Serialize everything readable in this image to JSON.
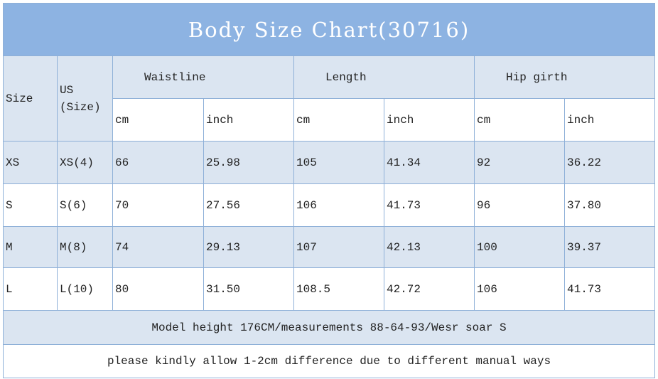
{
  "title": "Body Size Chart(30716)",
  "header": {
    "size": "Size",
    "us": [
      "US",
      "(Size)"
    ],
    "groups": [
      {
        "name": "Waistline",
        "units": [
          "cm",
          "inch"
        ]
      },
      {
        "name": "Length",
        "units": [
          "cm",
          "inch"
        ]
      },
      {
        "name": "Hip girth",
        "units": [
          "cm",
          "inch"
        ]
      }
    ]
  },
  "rows": [
    [
      "XS",
      "XS(4)",
      "66",
      "25.98",
      "105",
      "41.34",
      "92",
      "36.22"
    ],
    [
      "S",
      "S(6)",
      "70",
      "27.56",
      "106",
      "41.73",
      "96",
      "37.80"
    ],
    [
      "M",
      "M(8)",
      "74",
      "29.13",
      "107",
      "42.13",
      "100",
      "39.37"
    ],
    [
      "L",
      "L(10)",
      "80",
      "31.50",
      "108.5",
      "42.72",
      "106",
      "41.73"
    ]
  ],
  "notes": [
    "Model height 176CM/measurements 88-64-93/Wesr soar S",
    "please kindly allow 1-2cm difference due to different manual ways"
  ]
}
